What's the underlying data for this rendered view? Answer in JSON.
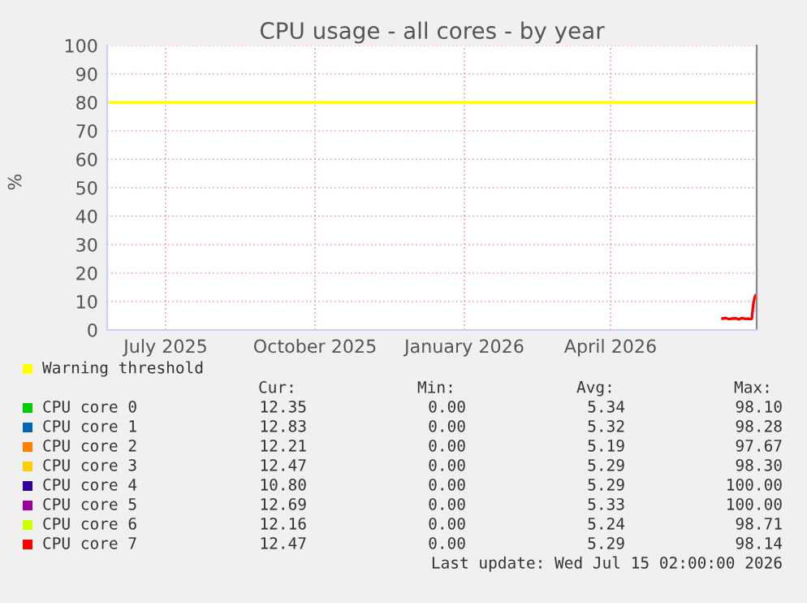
{
  "chart_data": {
    "type": "line",
    "title": "CPU usage - all cores - by year",
    "ylabel": "%",
    "x": [
      "2026-06-24",
      "2026-06-26",
      "2026-06-28",
      "2026-06-30",
      "2026-07-02",
      "2026-07-04",
      "2026-07-06",
      "2026-07-08",
      "2026-07-10",
      "2026-07-11",
      "2026-07-12",
      "2026-07-13",
      "2026-07-14",
      "2026-07-15"
    ],
    "series": [
      {
        "name": "CPU core 0",
        "color": "#00cc00",
        "values": [
          null,
          null,
          null,
          null,
          null,
          null,
          null,
          null,
          null,
          null,
          null,
          null,
          null,
          null
        ]
      },
      {
        "name": "CPU core 1",
        "color": "#0066b3",
        "values": [
          null,
          null,
          null,
          null,
          null,
          null,
          null,
          null,
          null,
          null,
          null,
          null,
          null,
          null
        ]
      },
      {
        "name": "CPU core 2",
        "color": "#ff8000",
        "values": [
          null,
          null,
          null,
          null,
          null,
          null,
          null,
          null,
          null,
          null,
          null,
          null,
          null,
          null
        ]
      },
      {
        "name": "CPU core 3",
        "color": "#ffcc00",
        "values": [
          null,
          null,
          null,
          null,
          null,
          null,
          null,
          null,
          null,
          null,
          null,
          null,
          null,
          null
        ]
      },
      {
        "name": "CPU core 4",
        "color": "#330099",
        "values": [
          null,
          null,
          null,
          null,
          null,
          null,
          null,
          null,
          null,
          null,
          null,
          null,
          null,
          null
        ]
      },
      {
        "name": "CPU core 5",
        "color": "#990099",
        "values": [
          null,
          null,
          null,
          null,
          null,
          null,
          null,
          null,
          null,
          null,
          null,
          null,
          null,
          null
        ]
      },
      {
        "name": "CPU core 6",
        "color": "#ccff00",
        "values": [
          null,
          null,
          null,
          null,
          null,
          null,
          null,
          null,
          null,
          null,
          null,
          null,
          null,
          null
        ]
      },
      {
        "name": "CPU core 7",
        "color": "#ff0000",
        "values": [
          4.0,
          4.2,
          3.8,
          4.0,
          4.1,
          3.7,
          4.2,
          3.9,
          4.0,
          3.8,
          4.0,
          9.6,
          11.9,
          12.5
        ]
      }
    ],
    "xlim": [
      "2025-06-10",
      "2026-07-15"
    ],
    "ylim": [
      0,
      100
    ],
    "xticks": [
      {
        "value": "2025-07-16",
        "label": "July 2025"
      },
      {
        "value": "2025-10-16",
        "label": "October 2025"
      },
      {
        "value": "2026-01-16",
        "label": "January 2026"
      },
      {
        "value": "2026-04-16",
        "label": "April 2026"
      }
    ],
    "yticks": [
      0,
      10,
      20,
      30,
      40,
      50,
      60,
      70,
      80,
      90,
      100
    ],
    "ref_lines": [
      {
        "axis": "y",
        "value": 80,
        "label": "Warning threshold",
        "color": "#ffff00"
      }
    ],
    "grid": true,
    "legend": "bottom left",
    "annotations": [
      "Cur:",
      "Min:",
      "Avg:",
      "Max:",
      "12.35",
      "0.00",
      "5.34",
      "98.10",
      "12.83",
      "0.00",
      "5.32",
      "98.28",
      "12.21",
      "0.00",
      "5.19",
      "97.67",
      "12.47",
      "0.00",
      "5.29",
      "98.30",
      "10.80",
      "0.00",
      "5.29",
      "100.00",
      "12.69",
      "0.00",
      "5.33",
      "100.00",
      "12.16",
      "0.00",
      "5.24",
      "98.71",
      "12.47",
      "0.00",
      "5.29",
      "98.14",
      "Last update: Wed Jul 15 02:00:00 2026"
    ]
  }
}
